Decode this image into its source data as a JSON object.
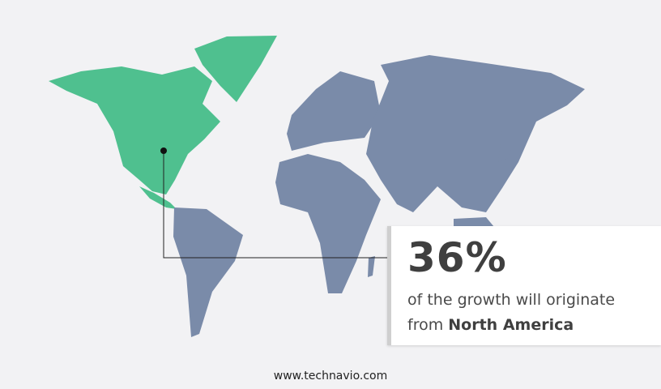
{
  "colors": {
    "highlight": "#4fc08f",
    "other": "#7a8ba9",
    "background": "#f2f2f4"
  },
  "callout": {
    "value": "36%",
    "text": "of the growth will originate",
    "prefix": "from",
    "region": "North America"
  },
  "highlighted_region": "North America",
  "footer": {
    "url": "www.technavio.com"
  }
}
